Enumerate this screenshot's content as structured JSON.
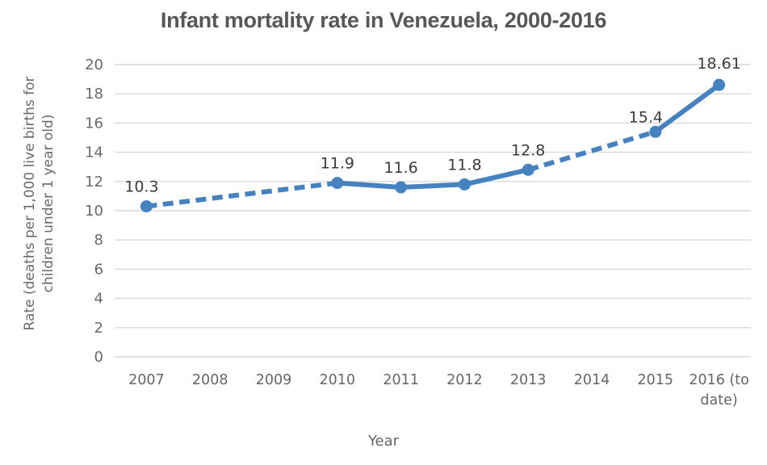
{
  "chart_data": {
    "type": "line",
    "title": "Infant mortality rate in Venezuela, 2000-2016",
    "xlabel": "Year",
    "ylabel": "Rate (deaths per 1,000 live births for children under 1 year old)",
    "categories": [
      "2007",
      "2008",
      "2009",
      "2010",
      "2011",
      "2012",
      "2013",
      "2014",
      "2015",
      "2016 (to date)"
    ],
    "ylim": [
      0,
      20
    ],
    "yticks": [
      0,
      2,
      4,
      6,
      8,
      10,
      12,
      14,
      16,
      18,
      20
    ],
    "grid": "horizontal",
    "legend": "none",
    "accent_color": "#4682bf",
    "gridline_color": "#d9d9d9",
    "series": [
      {
        "name": "Infant mortality rate",
        "points": [
          {
            "category": "2007",
            "x_index": 0,
            "value": 10.3,
            "label": "10.3",
            "segment_to_next": "dashed",
            "label_dx": -6
          },
          {
            "category": "2010",
            "x_index": 3,
            "value": 11.9,
            "label": "11.9",
            "segment_to_next": "solid"
          },
          {
            "category": "2011",
            "x_index": 4,
            "value": 11.6,
            "label": "11.6",
            "segment_to_next": "solid"
          },
          {
            "category": "2012",
            "x_index": 5,
            "value": 11.8,
            "label": "11.8",
            "segment_to_next": "solid"
          },
          {
            "category": "2013",
            "x_index": 6,
            "value": 12.8,
            "label": "12.8",
            "segment_to_next": "dashed"
          },
          {
            "category": "2015",
            "x_index": 8,
            "value": 15.4,
            "label": "15.4",
            "segment_to_next": "solid",
            "label_dx": -12,
            "label_dy": 6
          },
          {
            "category": "2016 (to date)",
            "x_index": 9,
            "value": 18.61,
            "label": "18.61",
            "segment_to_next": null,
            "label_dy": -2
          }
        ]
      }
    ]
  }
}
